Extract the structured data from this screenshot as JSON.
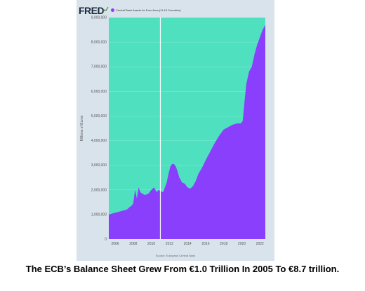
{
  "header": {
    "logo_text": "FRED",
    "legend_label": "Central Bank Assets for Euro Area (11-19 Countries)",
    "legend_color": "#8a3ffc"
  },
  "caption": "The ECB’s Balance Sheet Grew From €1.0 Trillion In 2005 To €8.7 trillion.",
  "chart_data": {
    "type": "area",
    "title": "",
    "xlabel": "",
    "ylabel": "Millions of Euros",
    "source": "Source: European Central Bank",
    "xlim": [
      2005.3,
      2022.6
    ],
    "ylim": [
      0,
      9000000
    ],
    "x_ticks": [
      2006,
      2008,
      2010,
      2012,
      2014,
      2016,
      2018,
      2020,
      2022
    ],
    "y_ticks": [
      0,
      1000000,
      2000000,
      3000000,
      4000000,
      5000000,
      6000000,
      7000000,
      8000000,
      9000000
    ],
    "y_tick_labels": [
      "0",
      "1,000,000",
      "2,000,000",
      "3,000,000",
      "4,000,000",
      "5,000,000",
      "6,000,000",
      "7,000,000",
      "8,000,000",
      "9,000,000"
    ],
    "fill_color": "#8a3ffc",
    "background_color": "#4ee0bf",
    "vertical_line_x": 2011.0,
    "series": [
      {
        "x": [
          2005.3,
          2005.8,
          2006.3,
          2006.8,
          2007.3,
          2007.6,
          2007.8,
          2008.0,
          2008.2,
          2008.4,
          2008.6,
          2008.8,
          2009.0,
          2009.2,
          2009.4,
          2009.7,
          2010.0,
          2010.3,
          2010.6,
          2010.8,
          2011.0,
          2011.3,
          2011.5,
          2011.7,
          2011.9,
          2012.1,
          2012.3,
          2012.5,
          2012.7,
          2012.9,
          2013.1,
          2013.4,
          2013.7,
          2014.0,
          2014.3,
          2014.6,
          2014.9,
          2015.2,
          2015.6,
          2016.0,
          2016.5,
          2017.0,
          2017.5,
          2018.0,
          2018.5,
          2019.0,
          2019.5,
          2019.9,
          2020.1,
          2020.3,
          2020.5,
          2020.8,
          2021.1,
          2021.4,
          2021.7,
          2022.0,
          2022.3,
          2022.6
        ],
        "y": [
          1000000,
          1050000,
          1100000,
          1150000,
          1200000,
          1300000,
          1350000,
          1450000,
          2000000,
          1650000,
          2100000,
          1900000,
          1850000,
          1800000,
          1800000,
          1850000,
          2000000,
          2100000,
          1900000,
          2000000,
          1950000,
          1900000,
          2100000,
          2300000,
          2650000,
          2950000,
          3050000,
          3050000,
          2950000,
          2750000,
          2500000,
          2300000,
          2250000,
          2100000,
          2050000,
          2150000,
          2350000,
          2650000,
          2900000,
          3200000,
          3550000,
          3900000,
          4200000,
          4450000,
          4550000,
          4650000,
          4700000,
          4700000,
          4800000,
          5600000,
          6300000,
          6800000,
          7000000,
          7500000,
          7900000,
          8200000,
          8500000,
          8700000
        ]
      }
    ]
  }
}
